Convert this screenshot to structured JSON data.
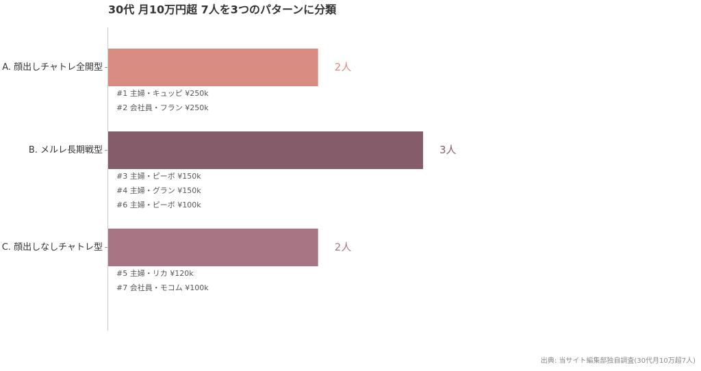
{
  "chart_data": {
    "type": "bar",
    "orientation": "horizontal",
    "title": "30代 月10万円超 7人を3つのパターンに分類",
    "categories": [
      "A. 顔出しチャトレ全開型",
      "B. メルレ長期戦型",
      "C. 顔出しなしチャトレ型"
    ],
    "values": [
      2,
      3,
      2
    ],
    "value_labels": [
      "2人",
      "3人",
      "2人"
    ],
    "colors": [
      "#d98c82",
      "#845c6a",
      "#a87585"
    ],
    "notes": [
      [
        "#1 主婦・キュッピ ¥250k",
        "#2 会社員・フラン ¥250k"
      ],
      [
        "#3 主婦・ピーボ ¥150k",
        "#4 主婦・グラン ¥150k",
        "#6 主婦・ピーボ ¥100k"
      ],
      [
        "#5 主婦・リカ ¥120k",
        "#7 会社員・モコム ¥100k"
      ]
    ],
    "source": "出典: 当サイト編集部独自調査(30代月10万超7人)"
  }
}
